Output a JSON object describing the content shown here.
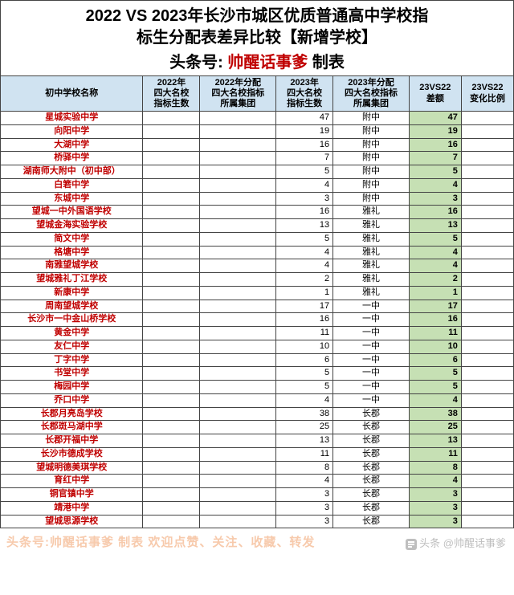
{
  "title": {
    "line1": "2022 VS 2023年长沙市城区优质普通高中学校指",
    "line2": "标生分配表差异比较【新增学校】",
    "line3_prefix": "头条号:",
    "line3_author": "帅醒话事爹",
    "line3_suffix": "  制表"
  },
  "columns": [
    "初中学校名称",
    "2022年\n四大名校\n指标生数",
    "2022年分配\n四大名校指标\n所属集团",
    "2023年\n四大名校\n指标生数",
    "2023年分配\n四大名校指标\n所属集团",
    "23VS22\n差额",
    "23VS22\n变化比例"
  ],
  "col_widths": [
    "150",
    "60",
    "80",
    "60",
    "80",
    "55",
    "55"
  ],
  "header_bg": "#d0e3f1",
  "diff_bg": "#c6e0b4",
  "school_color": "#c00000",
  "rows": [
    {
      "school": "星城实验中学",
      "c2022": "",
      "g2022": "",
      "c2023": "47",
      "g2023": "附中",
      "diff": "47",
      "ratio": ""
    },
    {
      "school": "向阳中学",
      "c2022": "",
      "g2022": "",
      "c2023": "19",
      "g2023": "附中",
      "diff": "19",
      "ratio": ""
    },
    {
      "school": "大湖中学",
      "c2022": "",
      "g2022": "",
      "c2023": "16",
      "g2023": "附中",
      "diff": "16",
      "ratio": ""
    },
    {
      "school": "桥驿中学",
      "c2022": "",
      "g2022": "",
      "c2023": "7",
      "g2023": "附中",
      "diff": "7",
      "ratio": ""
    },
    {
      "school": "湖南师大附中（初中部）",
      "c2022": "",
      "g2022": "",
      "c2023": "5",
      "g2023": "附中",
      "diff": "5",
      "ratio": ""
    },
    {
      "school": "白箬中学",
      "c2022": "",
      "g2022": "",
      "c2023": "4",
      "g2023": "附中",
      "diff": "4",
      "ratio": ""
    },
    {
      "school": "东城中学",
      "c2022": "",
      "g2022": "",
      "c2023": "3",
      "g2023": "附中",
      "diff": "3",
      "ratio": ""
    },
    {
      "school": "望城一中外国语学校",
      "c2022": "",
      "g2022": "",
      "c2023": "16",
      "g2023": "雅礼",
      "diff": "16",
      "ratio": ""
    },
    {
      "school": "望城金海实验学校",
      "c2022": "",
      "g2022": "",
      "c2023": "13",
      "g2023": "雅礼",
      "diff": "13",
      "ratio": ""
    },
    {
      "school": "简文中学",
      "c2022": "",
      "g2022": "",
      "c2023": "5",
      "g2023": "雅礼",
      "diff": "5",
      "ratio": ""
    },
    {
      "school": "格塘中学",
      "c2022": "",
      "g2022": "",
      "c2023": "4",
      "g2023": "雅礼",
      "diff": "4",
      "ratio": ""
    },
    {
      "school": "南雅望城学校",
      "c2022": "",
      "g2022": "",
      "c2023": "4",
      "g2023": "雅礼",
      "diff": "4",
      "ratio": ""
    },
    {
      "school": "望城雅礼丁江学校",
      "c2022": "",
      "g2022": "",
      "c2023": "2",
      "g2023": "雅礼",
      "diff": "2",
      "ratio": ""
    },
    {
      "school": "新康中学",
      "c2022": "",
      "g2022": "",
      "c2023": "1",
      "g2023": "雅礼",
      "diff": "1",
      "ratio": ""
    },
    {
      "school": "周南望城学校",
      "c2022": "",
      "g2022": "",
      "c2023": "17",
      "g2023": "一中",
      "diff": "17",
      "ratio": ""
    },
    {
      "school": "长沙市一中金山桥学校",
      "c2022": "",
      "g2022": "",
      "c2023": "16",
      "g2023": "一中",
      "diff": "16",
      "ratio": ""
    },
    {
      "school": "黄金中学",
      "c2022": "",
      "g2022": "",
      "c2023": "11",
      "g2023": "一中",
      "diff": "11",
      "ratio": ""
    },
    {
      "school": "友仁中学",
      "c2022": "",
      "g2022": "",
      "c2023": "10",
      "g2023": "一中",
      "diff": "10",
      "ratio": ""
    },
    {
      "school": "丁字中学",
      "c2022": "",
      "g2022": "",
      "c2023": "6",
      "g2023": "一中",
      "diff": "6",
      "ratio": ""
    },
    {
      "school": "书堂中学",
      "c2022": "",
      "g2022": "",
      "c2023": "5",
      "g2023": "一中",
      "diff": "5",
      "ratio": ""
    },
    {
      "school": "梅园中学",
      "c2022": "",
      "g2022": "",
      "c2023": "5",
      "g2023": "一中",
      "diff": "5",
      "ratio": ""
    },
    {
      "school": "乔口中学",
      "c2022": "",
      "g2022": "",
      "c2023": "4",
      "g2023": "一中",
      "diff": "4",
      "ratio": ""
    },
    {
      "school": "长郡月亮岛学校",
      "c2022": "",
      "g2022": "",
      "c2023": "38",
      "g2023": "长郡",
      "diff": "38",
      "ratio": ""
    },
    {
      "school": "长郡斑马湖中学",
      "c2022": "",
      "g2022": "",
      "c2023": "25",
      "g2023": "长郡",
      "diff": "25",
      "ratio": ""
    },
    {
      "school": "长郡开福中学",
      "c2022": "",
      "g2022": "",
      "c2023": "13",
      "g2023": "长郡",
      "diff": "13",
      "ratio": ""
    },
    {
      "school": "长沙市德成学校",
      "c2022": "",
      "g2022": "",
      "c2023": "11",
      "g2023": "长郡",
      "diff": "11",
      "ratio": ""
    },
    {
      "school": "望城明德美琪学校",
      "c2022": "",
      "g2022": "",
      "c2023": "8",
      "g2023": "长郡",
      "diff": "8",
      "ratio": ""
    },
    {
      "school": "育红中学",
      "c2022": "",
      "g2022": "",
      "c2023": "4",
      "g2023": "长郡",
      "diff": "4",
      "ratio": ""
    },
    {
      "school": "铜官镇中学",
      "c2022": "",
      "g2022": "",
      "c2023": "3",
      "g2023": "长郡",
      "diff": "3",
      "ratio": ""
    },
    {
      "school": "靖港中学",
      "c2022": "",
      "g2022": "",
      "c2023": "3",
      "g2023": "长郡",
      "diff": "3",
      "ratio": ""
    },
    {
      "school": "望城思源学校",
      "c2022": "",
      "g2022": "",
      "c2023": "3",
      "g2023": "长郡",
      "diff": "3",
      "ratio": ""
    }
  ],
  "footer": {
    "left": "头条号:帅醒话事爹  制表  欢迎点赞、关注、收藏、转发",
    "right_prefix": "头条",
    "right_author": "@帅醒话事爹"
  }
}
